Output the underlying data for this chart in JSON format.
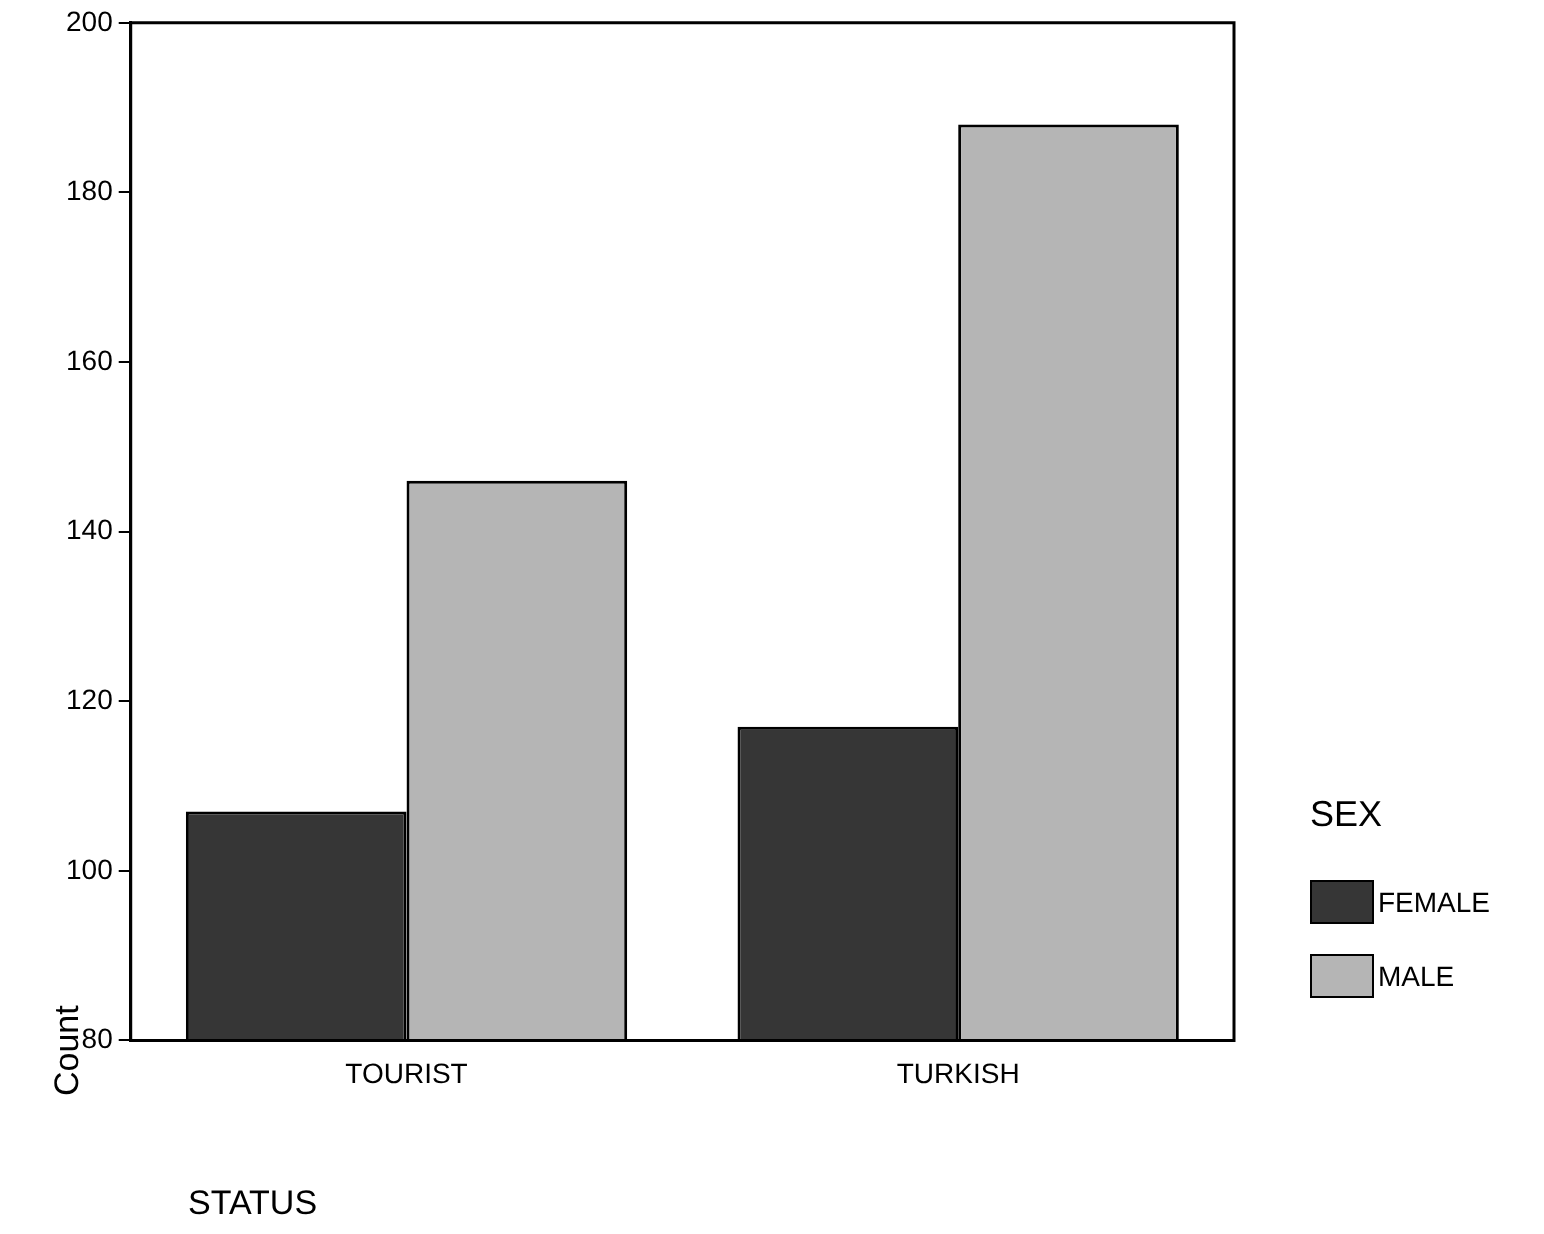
{
  "chart_data": {
    "type": "bar",
    "xlabel": "STATUS",
    "ylabel": "Count",
    "legend_title": "SEX",
    "categories": [
      "TOURIST",
      "TURKISH"
    ],
    "series": [
      {
        "name": "FEMALE",
        "color": "#363636",
        "values": [
          107,
          117
        ]
      },
      {
        "name": "MALE",
        "color": "#b5b5b5",
        "values": [
          146,
          188
        ]
      }
    ],
    "ylim": [
      80,
      200
    ],
    "yticks": [
      80,
      100,
      120,
      140,
      160,
      180,
      200
    ],
    "grid": false,
    "legend": "right"
  }
}
